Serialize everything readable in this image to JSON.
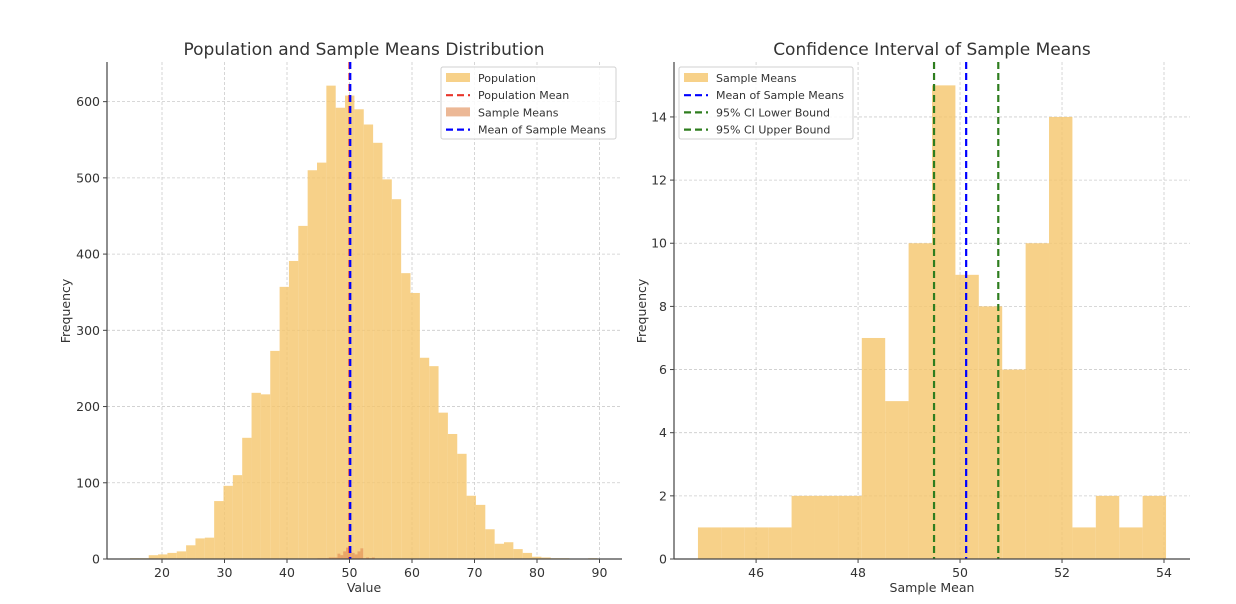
{
  "figure": {
    "colors": {
      "population": "#f5c66b",
      "sample_means_overlay": "#e08850",
      "population_mean": "#e8342a",
      "mean_of_sample_means": "#0000ff",
      "ci_bound": "#2e7d1e",
      "axis": "#444444",
      "grid": "#cccccc",
      "text": "#333333"
    }
  },
  "chart_data": [
    {
      "type": "bar",
      "subtype": "histogram",
      "title": "Population and Sample Means Distribution",
      "xlabel": "Value",
      "ylabel": "Frequency",
      "xlim": [
        11.2,
        93.6
      ],
      "ylim": [
        0,
        652
      ],
      "xticks": [
        20,
        30,
        40,
        50,
        60,
        70,
        80,
        90
      ],
      "yticks": [
        0,
        100,
        200,
        300,
        400,
        500,
        600
      ],
      "grid": true,
      "legend_position": "top-right",
      "legend": [
        "Population",
        "Population Mean",
        "Sample Means",
        "Mean of Sample Means"
      ],
      "series": [
        {
          "name": "Population",
          "bin_start": 14.88,
          "bin_width": 1.496,
          "values": [
            1,
            1,
            5,
            6,
            8,
            10,
            18,
            27,
            28,
            76,
            96,
            110,
            159,
            218,
            216,
            273,
            357,
            391,
            437,
            510,
            520,
            621,
            592,
            608,
            590,
            570,
            546,
            498,
            472,
            375,
            349,
            264,
            253,
            192,
            164,
            138,
            83,
            71,
            39,
            20,
            22,
            13,
            8,
            3,
            2,
            1,
            1,
            0,
            0,
            1
          ]
        },
        {
          "name": "Sample Means",
          "bin_start": 44.86,
          "bin_width": 0.459,
          "values": [
            1,
            1,
            1,
            1,
            2,
            2,
            2,
            7,
            5,
            10,
            15,
            9,
            8,
            6,
            10,
            14,
            1,
            2,
            1,
            2
          ]
        }
      ],
      "vlines": [
        {
          "name": "Population Mean",
          "x": 50.0,
          "style": "dashed"
        },
        {
          "name": "Mean of Sample Means",
          "x": 50.12,
          "style": "dashed"
        }
      ]
    },
    {
      "type": "bar",
      "subtype": "histogram",
      "title": "Confidence Interval of Sample Means",
      "xlabel": "Sample Mean",
      "ylabel": "Frequency",
      "xlim": [
        44.39,
        54.51
      ],
      "ylim": [
        0,
        15.74
      ],
      "xticks": [
        46,
        48,
        50,
        52,
        54
      ],
      "yticks": [
        0,
        2,
        4,
        6,
        8,
        10,
        12,
        14
      ],
      "grid": true,
      "legend_position": "top-left",
      "legend": [
        "Sample Means",
        "Mean of Sample Means",
        "95% CI Lower Bound",
        "95% CI Upper Bound"
      ],
      "series": [
        {
          "name": "Sample Means",
          "bin_start": 44.86,
          "bin_width": 0.459,
          "values": [
            1,
            1,
            1,
            1,
            2,
            2,
            2,
            7,
            5,
            10,
            15,
            9,
            8,
            6,
            10,
            14,
            1,
            2,
            1,
            2
          ]
        }
      ],
      "vlines": [
        {
          "name": "Mean of Sample Means",
          "x": 50.12,
          "style": "dashed"
        },
        {
          "name": "95% CI Lower Bound",
          "x": 49.49,
          "style": "dashed"
        },
        {
          "name": "95% CI Upper Bound",
          "x": 50.75,
          "style": "dashed"
        }
      ]
    }
  ]
}
